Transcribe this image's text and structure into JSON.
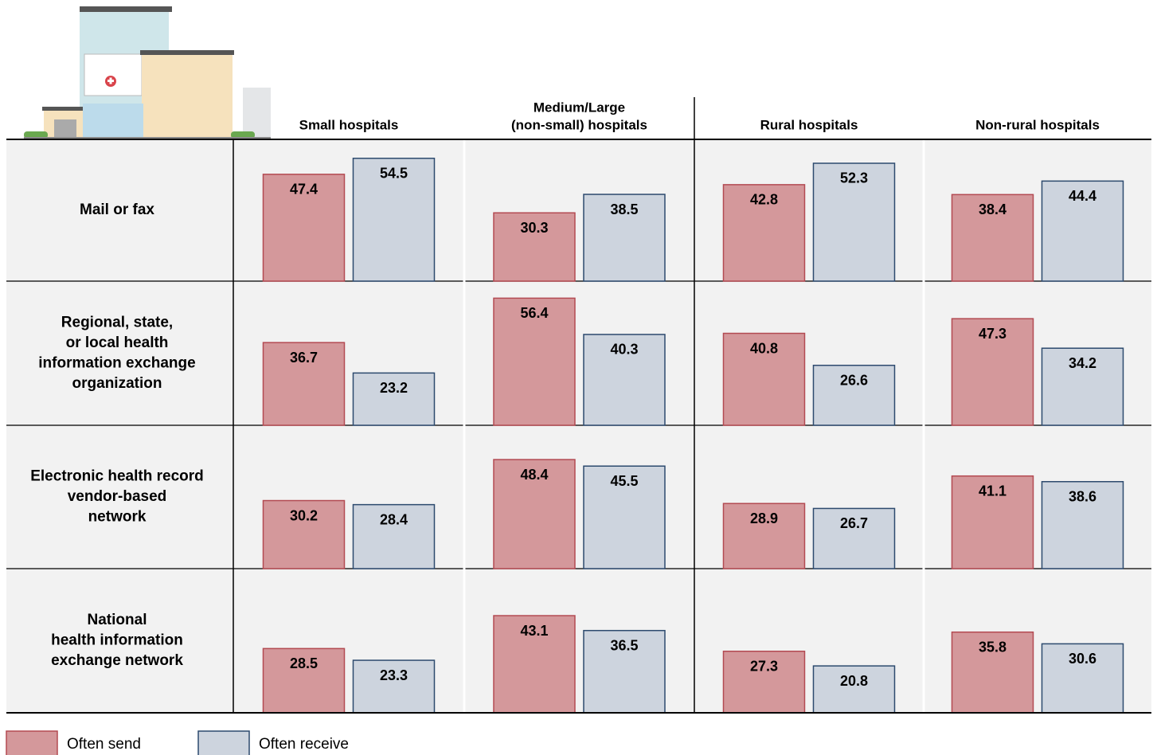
{
  "chart_data": {
    "type": "bar",
    "columns": [
      [
        "Small hospitals"
      ],
      [
        "Medium/Large",
        "(non-small) hospitals"
      ],
      [
        "Rural hospitals"
      ],
      [
        "Non-rural hospitals"
      ]
    ],
    "rows": [
      [
        "Mail or fax"
      ],
      [
        "Regional, state,",
        "or local health",
        "information exchange",
        "organization"
      ],
      [
        "Electronic health record",
        "vendor-based",
        "network"
      ],
      [
        "National",
        "health information",
        "exchange network"
      ]
    ],
    "series": [
      {
        "name": "Often send",
        "color": "#d4989b",
        "stroke": "#b34a52",
        "values": [
          [
            47.4,
            30.3,
            42.8,
            38.4
          ],
          [
            36.7,
            56.4,
            40.8,
            47.3
          ],
          [
            30.2,
            48.4,
            28.9,
            41.1
          ],
          [
            28.5,
            43.1,
            27.3,
            35.8
          ]
        ]
      },
      {
        "name": "Often receive",
        "color": "#cdd4de",
        "stroke": "#2d4a6e",
        "values": [
          [
            54.5,
            38.5,
            52.3,
            44.4
          ],
          [
            23.2,
            40.3,
            26.6,
            34.2
          ],
          [
            28.4,
            45.5,
            26.7,
            38.6
          ],
          [
            23.3,
            36.5,
            20.8,
            30.6
          ]
        ]
      }
    ]
  }
}
